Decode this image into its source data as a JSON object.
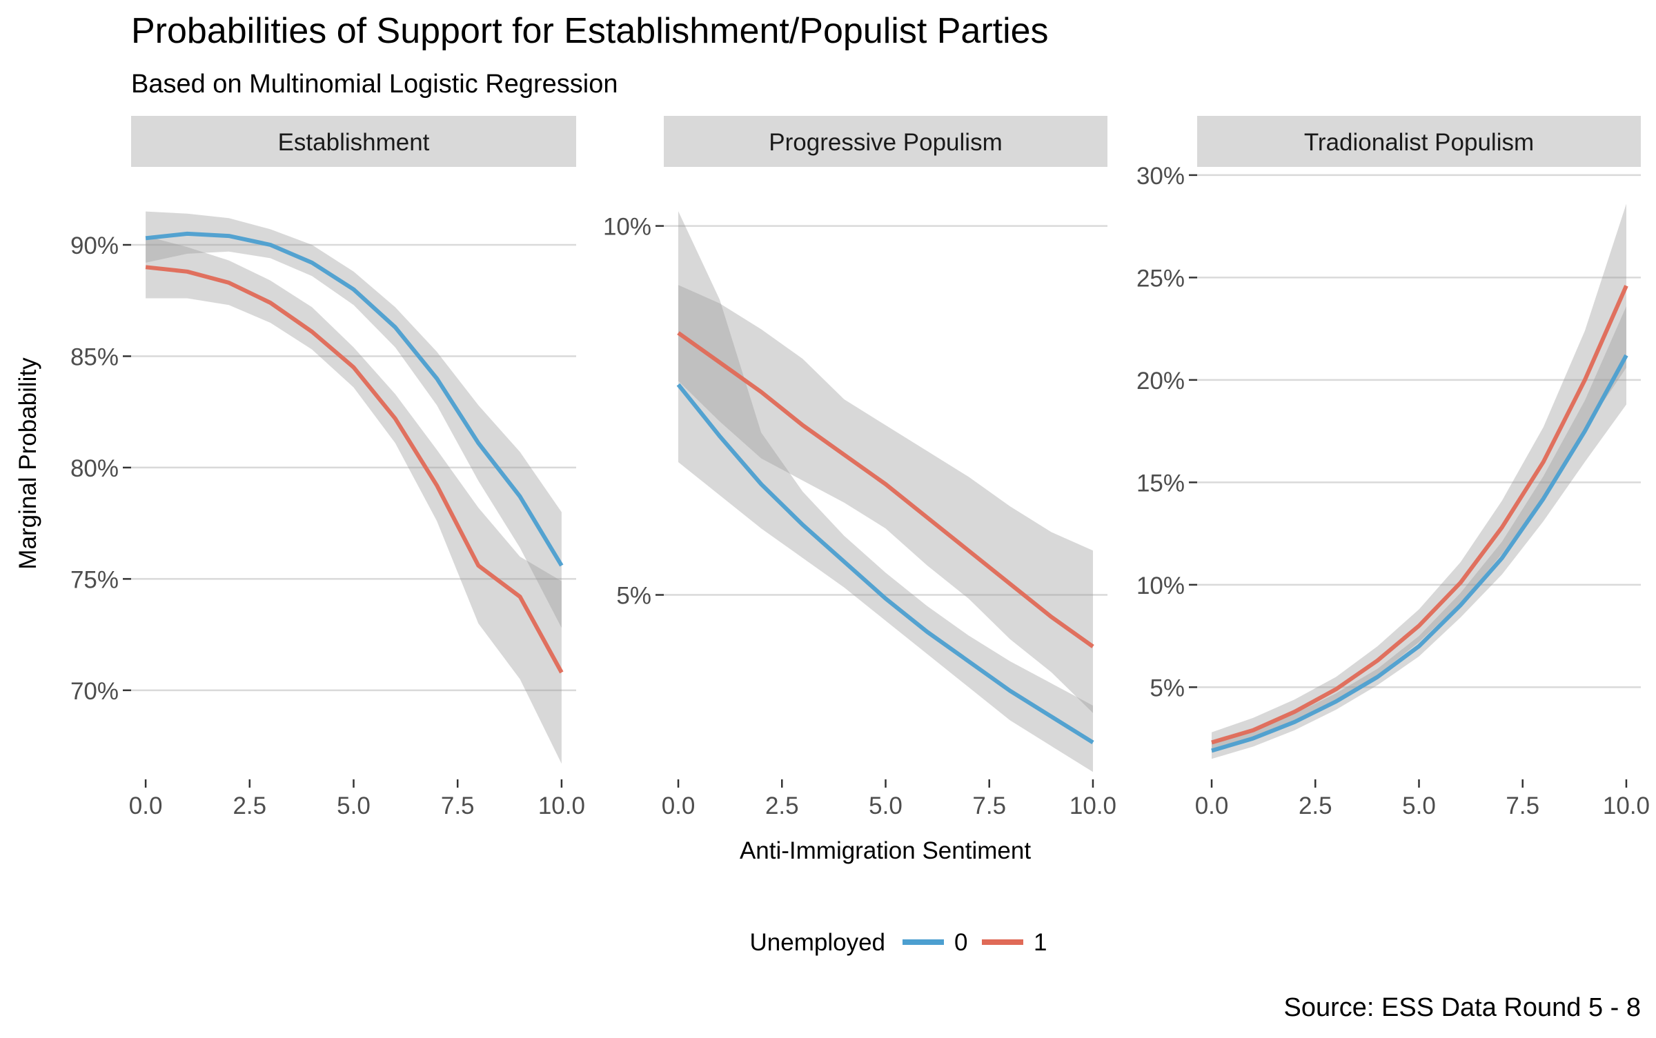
{
  "title": "Probabilities of Support for Establishment/Populist Parties",
  "subtitle": "Based on Multinomial Logistic Regression",
  "caption": "Source: ESS Data Round 5 - 8",
  "legend": {
    "title": "Unemployed",
    "position": "bottom",
    "items": [
      {
        "label": "0",
        "color": "#4c9fd0"
      },
      {
        "label": "1",
        "color": "#e06a57"
      }
    ]
  },
  "chart_data": [
    {
      "type": "line",
      "facet": "Establishment",
      "xlabel": "Anti-Immigration Sentiment",
      "ylabel": "Marginal Probability",
      "x_ticks": [
        0.0,
        2.5,
        5.0,
        7.5,
        10.0
      ],
      "x_tick_labels": [
        "0.0",
        "2.5",
        "5.0",
        "7.5",
        "10.0"
      ],
      "y_ticks": [
        70,
        75,
        80,
        85,
        90
      ],
      "y_tick_labels": [
        "70%",
        "75%",
        "80%",
        "85%",
        "90%"
      ],
      "xlim": [
        -0.35,
        10.35
      ],
      "ylim": [
        66.0,
        93.5
      ],
      "grid": true,
      "x": [
        0,
        1,
        2,
        3,
        4,
        5,
        6,
        7,
        8,
        9,
        10
      ],
      "series": [
        {
          "name": "0",
          "values": [
            90.3,
            90.5,
            90.4,
            90.0,
            89.2,
            88.0,
            86.3,
            84.0,
            81.1,
            78.7,
            75.6
          ],
          "lower": [
            89.2,
            89.6,
            89.7,
            89.4,
            88.6,
            87.3,
            85.4,
            82.8,
            79.4,
            76.4,
            72.8
          ],
          "upper": [
            91.5,
            91.4,
            91.2,
            90.7,
            90.0,
            88.8,
            87.2,
            85.2,
            82.8,
            80.7,
            78.0
          ]
        },
        {
          "name": "1",
          "values": [
            89.0,
            88.8,
            88.3,
            87.4,
            86.1,
            84.5,
            82.2,
            79.2,
            75.6,
            74.2,
            70.8
          ],
          "lower": [
            87.6,
            87.6,
            87.3,
            86.5,
            85.3,
            83.6,
            81.1,
            77.6,
            73.0,
            70.5,
            66.7
          ],
          "upper": [
            90.4,
            89.9,
            89.3,
            88.4,
            87.2,
            85.4,
            83.3,
            80.8,
            78.2,
            76.0,
            74.9
          ]
        }
      ]
    },
    {
      "type": "line",
      "facet": "Progressive Populism",
      "xlabel": "Anti-Immigration Sentiment",
      "ylabel": "Marginal Probability",
      "x_ticks": [
        0.0,
        2.5,
        5.0,
        7.5,
        10.0
      ],
      "x_tick_labels": [
        "0.0",
        "2.5",
        "5.0",
        "7.5",
        "10.0"
      ],
      "y_ticks": [
        5,
        10
      ],
      "y_tick_labels": [
        "5%",
        "10%"
      ],
      "xlim": [
        -0.35,
        10.35
      ],
      "ylim": [
        2.5,
        10.8
      ],
      "grid": true,
      "x": [
        0,
        1,
        2,
        3,
        4,
        5,
        6,
        7,
        8,
        9,
        10
      ],
      "series": [
        {
          "name": "0",
          "values": [
            7.85,
            7.15,
            6.5,
            5.95,
            5.45,
            4.95,
            4.5,
            4.1,
            3.7,
            3.35,
            3.0
          ],
          "lower": [
            6.8,
            6.35,
            5.9,
            5.5,
            5.1,
            4.65,
            4.2,
            3.75,
            3.3,
            2.95,
            2.6
          ],
          "upper": [
            10.2,
            9.0,
            7.2,
            6.4,
            5.8,
            5.3,
            4.85,
            4.45,
            4.1,
            3.8,
            3.5
          ]
        },
        {
          "name": "1",
          "values": [
            8.55,
            8.15,
            7.75,
            7.3,
            6.9,
            6.5,
            6.05,
            5.6,
            5.15,
            4.7,
            4.3
          ],
          "lower": [
            7.9,
            7.35,
            6.85,
            6.55,
            6.25,
            5.9,
            5.4,
            4.95,
            4.4,
            3.95,
            3.4
          ],
          "upper": [
            9.2,
            8.95,
            8.6,
            8.2,
            7.65,
            7.3,
            6.95,
            6.6,
            6.2,
            5.85,
            5.6
          ]
        }
      ]
    },
    {
      "type": "line",
      "facet": "Tradionalist Populism",
      "xlabel": "Anti-Immigration Sentiment",
      "ylabel": "Marginal Probability",
      "x_ticks": [
        0.0,
        2.5,
        5.0,
        7.5,
        10.0
      ],
      "x_tick_labels": [
        "0.0",
        "2.5",
        "5.0",
        "7.5",
        "10.0"
      ],
      "y_ticks": [
        5,
        10,
        15,
        20,
        25,
        30
      ],
      "y_tick_labels": [
        "5%",
        "10%",
        "15%",
        "20%",
        "25%",
        "30%"
      ],
      "xlim": [
        -0.35,
        10.35
      ],
      "ylim": [
        0.5,
        30.4
      ],
      "grid": true,
      "x": [
        0,
        1,
        2,
        3,
        4,
        5,
        6,
        7,
        8,
        9,
        10
      ],
      "series": [
        {
          "name": "0",
          "values": [
            1.9,
            2.5,
            3.3,
            4.3,
            5.5,
            7.0,
            9.0,
            11.3,
            14.2,
            17.5,
            21.2
          ],
          "lower": [
            1.5,
            2.1,
            2.9,
            3.9,
            5.1,
            6.5,
            8.4,
            10.5,
            13.1,
            16.0,
            18.8
          ],
          "upper": [
            2.3,
            2.9,
            3.7,
            4.7,
            5.9,
            7.5,
            9.6,
            12.1,
            15.3,
            19.0,
            23.6
          ]
        },
        {
          "name": "1",
          "values": [
            2.3,
            2.9,
            3.8,
            4.9,
            6.3,
            8.0,
            10.1,
            12.8,
            16.0,
            20.0,
            24.6
          ],
          "lower": [
            1.8,
            2.4,
            3.3,
            4.3,
            5.6,
            7.2,
            9.1,
            11.5,
            14.3,
            17.6,
            20.6
          ],
          "upper": [
            2.8,
            3.5,
            4.4,
            5.5,
            7.0,
            8.8,
            11.1,
            14.1,
            17.7,
            22.4,
            28.6
          ]
        }
      ]
    }
  ]
}
